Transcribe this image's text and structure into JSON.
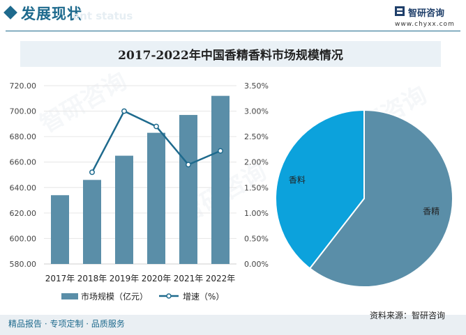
{
  "header": {
    "section_title": "发展现状",
    "section_subtitle": "ent status",
    "brand_name": "智研咨询",
    "brand_url": "www.chyxx.com"
  },
  "watermark": "智研咨询",
  "footer": {
    "left": "精品报告 · 专项定制 · 品质服务",
    "source": "资料来源：智研咨询"
  },
  "chart_data": [
    {
      "type": "bar",
      "title": "2017-2022年中国香精香料市场规模情况",
      "categories": [
        "2017年",
        "2018年",
        "2019年",
        "2020年",
        "2021年",
        "2022年"
      ],
      "series": [
        {
          "name": "市场规模（亿元）",
          "type": "bar",
          "axis": "left",
          "values": [
            634,
            646,
            665,
            683,
            697,
            712
          ],
          "color": "#5a8ea8"
        },
        {
          "name": "增速（%）",
          "type": "line",
          "axis": "right",
          "values": [
            null,
            1.8,
            3.0,
            2.7,
            1.95,
            2.22
          ],
          "color": "#1e6a8d"
        }
      ],
      "left_axis": {
        "min": 580,
        "max": 720,
        "ticks": [
          "580.00",
          "600.00",
          "620.00",
          "640.00",
          "660.00",
          "680.00",
          "700.00",
          "720.00"
        ]
      },
      "right_axis": {
        "min": 0,
        "max": 3.5,
        "ticks": [
          "0.00%",
          "0.50%",
          "1.00%",
          "1.50%",
          "2.00%",
          "2.50%",
          "3.00%",
          "3.50%"
        ]
      },
      "legend_placement": "bottom"
    },
    {
      "type": "pie",
      "slices": [
        {
          "label": "香精",
          "value": 60.5,
          "color": "#5a8ea8"
        },
        {
          "label": "香料",
          "value": 39.5,
          "color": "#0ca2dc"
        }
      ]
    }
  ]
}
